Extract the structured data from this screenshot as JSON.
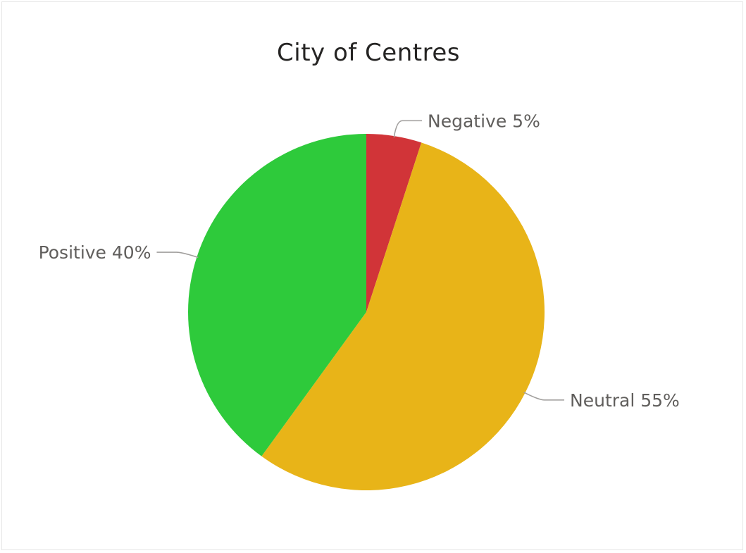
{
  "chart_data": {
    "type": "pie",
    "title": "City of Centres",
    "slices": [
      {
        "name": "Negative",
        "value": 5,
        "label": "5%",
        "color": "#d13438"
      },
      {
        "name": "Neutral",
        "value": 55,
        "label": "55%",
        "color": "#e8b418"
      },
      {
        "name": "Positive",
        "value": 40,
        "label": "40%",
        "color": "#2eca3b"
      }
    ],
    "start_angle_deg": 0,
    "direction": "clockwise",
    "legend": "none",
    "data_labels": "outside"
  }
}
